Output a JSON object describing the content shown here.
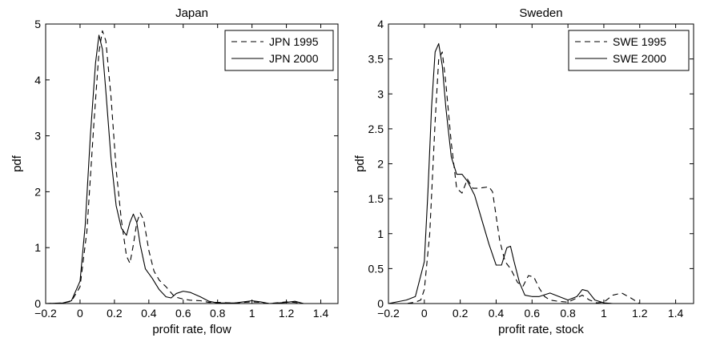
{
  "chart_data": [
    {
      "type": "line",
      "title": "Japan",
      "xlabel": "profit rate, flow",
      "ylabel": "pdf",
      "xlim": [
        -0.2,
        1.5
      ],
      "ylim": [
        0,
        5
      ],
      "xticks": [
        "−0.2",
        "0",
        "0.2",
        "0.4",
        "0.6",
        "0.8",
        "1",
        "1.2",
        "1.4"
      ],
      "xtick_values": [
        -0.2,
        0,
        0.2,
        0.4,
        0.6,
        0.8,
        1.0,
        1.2,
        1.4
      ],
      "yticks": [
        "0",
        "1",
        "2",
        "3",
        "4",
        "5"
      ],
      "ytick_values": [
        0,
        1,
        2,
        3,
        4,
        5
      ],
      "grid": false,
      "legend_position": "top-right",
      "series": [
        {
          "name": "JPN 1995",
          "style": "dashed",
          "x": [
            -0.2,
            -0.1,
            -0.05,
            0.0,
            0.04,
            0.08,
            0.11,
            0.13,
            0.15,
            0.18,
            0.21,
            0.24,
            0.27,
            0.29,
            0.31,
            0.33,
            0.35,
            0.37,
            0.4,
            0.43,
            0.46,
            0.5,
            0.55,
            0.6,
            0.64,
            0.7,
            0.75,
            0.8,
            0.9,
            1.0,
            1.05,
            1.1,
            1.2,
            1.25,
            1.3
          ],
          "y": [
            0,
            0.01,
            0.04,
            0.3,
            1.3,
            3.2,
            4.5,
            4.88,
            4.7,
            3.7,
            2.4,
            1.5,
            0.85,
            0.72,
            1.05,
            1.45,
            1.62,
            1.5,
            0.95,
            0.58,
            0.42,
            0.3,
            0.12,
            0.08,
            0.06,
            0.05,
            0.02,
            0.02,
            0.01,
            0.03,
            0.02,
            0.0,
            0.03,
            0.02,
            0.0
          ]
        },
        {
          "name": "JPN 2000",
          "style": "solid",
          "x": [
            -0.2,
            -0.1,
            -0.05,
            0.0,
            0.03,
            0.06,
            0.09,
            0.11,
            0.13,
            0.15,
            0.18,
            0.21,
            0.24,
            0.27,
            0.29,
            0.31,
            0.33,
            0.35,
            0.38,
            0.42,
            0.46,
            0.5,
            0.53,
            0.56,
            0.6,
            0.64,
            0.7,
            0.75,
            0.8,
            0.9,
            1.0,
            1.05,
            1.1,
            1.2,
            1.25,
            1.3
          ],
          "y": [
            0,
            0.01,
            0.05,
            0.4,
            1.4,
            3.0,
            4.3,
            4.8,
            4.55,
            3.8,
            2.6,
            1.75,
            1.35,
            1.22,
            1.45,
            1.6,
            1.45,
            1.05,
            0.62,
            0.45,
            0.25,
            0.12,
            0.1,
            0.18,
            0.22,
            0.2,
            0.12,
            0.04,
            0.01,
            0.01,
            0.05,
            0.03,
            0.0,
            0.02,
            0.04,
            0.0
          ]
        }
      ]
    },
    {
      "type": "line",
      "title": "Sweden",
      "xlabel": "profit rate, stock",
      "ylabel": "pdf",
      "xlim": [
        -0.2,
        1.5
      ],
      "ylim": [
        0,
        4
      ],
      "xticks": [
        "−0.2",
        "0",
        "0.2",
        "0.4",
        "0.6",
        "0.8",
        "1",
        "1.2",
        "1.4"
      ],
      "xtick_values": [
        -0.2,
        0,
        0.2,
        0.4,
        0.6,
        0.8,
        1.0,
        1.2,
        1.4
      ],
      "yticks": [
        "0",
        "0.5",
        "1",
        "1.5",
        "2",
        "2.5",
        "3",
        "3.5",
        "4"
      ],
      "ytick_values": [
        0,
        0.5,
        1,
        1.5,
        2,
        2.5,
        3,
        3.5,
        4
      ],
      "grid": false,
      "legend_position": "top-right",
      "series": [
        {
          "name": "SWE 1995",
          "style": "dashed",
          "x": [
            -0.2,
            -0.1,
            -0.05,
            -0.02,
            0.0,
            0.03,
            0.06,
            0.08,
            0.1,
            0.12,
            0.15,
            0.18,
            0.21,
            0.24,
            0.27,
            0.3,
            0.33,
            0.36,
            0.38,
            0.4,
            0.42,
            0.45,
            0.48,
            0.52,
            0.55,
            0.58,
            0.61,
            0.64,
            0.67,
            0.7,
            0.75,
            0.8,
            0.85,
            0.88,
            0.92,
            0.96,
            1.0,
            1.05,
            1.1,
            1.15,
            1.2
          ],
          "y": [
            0,
            0.0,
            0.02,
            0.05,
            0.2,
            1.0,
            2.6,
            3.5,
            3.6,
            3.15,
            2.3,
            1.65,
            1.58,
            1.78,
            1.65,
            1.65,
            1.66,
            1.67,
            1.6,
            1.25,
            0.9,
            0.6,
            0.5,
            0.3,
            0.25,
            0.4,
            0.38,
            0.22,
            0.1,
            0.05,
            0.03,
            0.02,
            0.08,
            0.12,
            0.05,
            0.01,
            0.02,
            0.12,
            0.15,
            0.08,
            0.0
          ]
        },
        {
          "name": "SWE 2000",
          "style": "solid",
          "x": [
            -0.2,
            -0.1,
            -0.05,
            0.0,
            0.02,
            0.04,
            0.06,
            0.08,
            0.1,
            0.12,
            0.15,
            0.18,
            0.21,
            0.24,
            0.28,
            0.32,
            0.36,
            0.4,
            0.43,
            0.46,
            0.48,
            0.5,
            0.53,
            0.56,
            0.6,
            0.64,
            0.7,
            0.75,
            0.8,
            0.85,
            0.88,
            0.91,
            0.95,
            1.0,
            1.05,
            1.1,
            1.2
          ],
          "y": [
            0,
            0.05,
            0.1,
            0.6,
            1.6,
            2.8,
            3.6,
            3.72,
            3.4,
            2.8,
            2.1,
            1.85,
            1.85,
            1.75,
            1.55,
            1.2,
            0.85,
            0.55,
            0.55,
            0.8,
            0.82,
            0.6,
            0.3,
            0.12,
            0.1,
            0.1,
            0.15,
            0.1,
            0.05,
            0.1,
            0.2,
            0.18,
            0.05,
            0.01,
            0.0,
            0.0,
            0.0
          ]
        }
      ]
    }
  ]
}
